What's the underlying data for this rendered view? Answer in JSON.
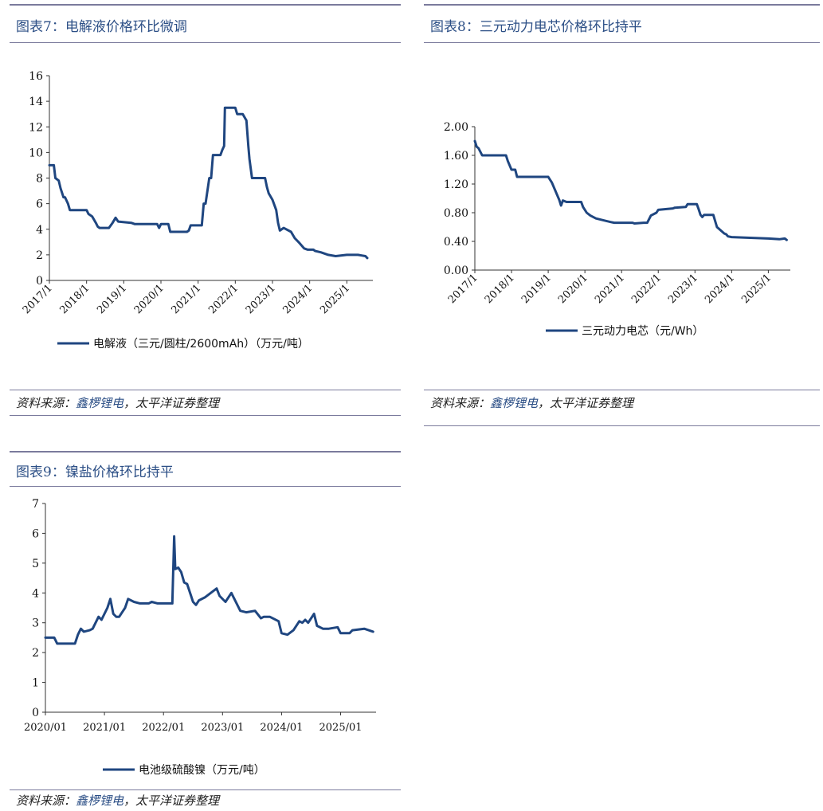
{
  "colors": {
    "title": "#2c4f86",
    "series": "#1f4680",
    "rule": "#7a7a9c"
  },
  "panels": [
    {
      "title": "图表7：电解液价格环比微调",
      "source_prefix": "资料来源：",
      "source_link": "鑫椤锂电",
      "source_suffix": "，太平洋证券整理"
    },
    {
      "title": "图表8：三元动力电芯价格环比持平",
      "source_prefix": "资料来源：",
      "source_link": "鑫椤锂电",
      "source_suffix": "，太平洋证券整理"
    },
    {
      "title": "图表9：镍盐价格环比持平",
      "source_prefix": "资料来源：",
      "source_link": "鑫椤锂电",
      "source_suffix": "，太平洋证券整理"
    }
  ],
  "chart_data": [
    {
      "type": "line",
      "title": "图表7：电解液价格环比微调",
      "xlabel": "",
      "ylabel": "",
      "x_range": [
        2017.0,
        2025.7
      ],
      "ylim": [
        0,
        16
      ],
      "yticks": [
        0,
        2,
        4,
        6,
        8,
        10,
        12,
        14,
        16
      ],
      "ytick_labels": [
        "0",
        "2",
        "4",
        "6",
        "8",
        "10",
        "12",
        "14",
        "16"
      ],
      "xticks": [
        2017,
        2018,
        2019,
        2020,
        2021,
        2022,
        2023,
        2024,
        2025
      ],
      "xtick_labels": [
        "2017/1",
        "2018/1",
        "2019/1",
        "2020/1",
        "2021/1",
        "2022/1",
        "2023/1",
        "2024/1",
        "2025/1"
      ],
      "xtick_rotate": true,
      "grid": false,
      "legend": "bottom",
      "series": [
        {
          "name": "电解液（三元/圆柱/2600mAh）（万元/吨）",
          "x": [
            2017.0,
            2017.12,
            2017.16,
            2017.25,
            2017.3,
            2017.38,
            2017.42,
            2017.5,
            2017.55,
            2017.6,
            2018.0,
            2018.05,
            2018.15,
            2018.25,
            2018.3,
            2018.35,
            2018.6,
            2018.7,
            2018.78,
            2018.85,
            2019.2,
            2019.3,
            2019.9,
            2019.95,
            2020.0,
            2020.2,
            2020.25,
            2020.7,
            2020.75,
            2020.8,
            2021.1,
            2021.15,
            2021.2,
            2021.3,
            2021.35,
            2021.4,
            2021.6,
            2021.65,
            2021.7,
            2021.72,
            2022.0,
            2022.05,
            2022.2,
            2022.3,
            2022.35,
            2022.38,
            2022.45,
            2022.8,
            2022.85,
            2022.9,
            2023.0,
            2023.1,
            2023.15,
            2023.2,
            2023.3,
            2023.5,
            2023.6,
            2023.7,
            2023.85,
            2023.95,
            2024.1,
            2024.15,
            2024.3,
            2024.5,
            2024.7,
            2025.0,
            2025.3,
            2025.4,
            2025.5,
            2025.55
          ],
          "y": [
            9.0,
            9.0,
            8.0,
            7.8,
            7.2,
            6.5,
            6.5,
            6.0,
            5.5,
            5.5,
            5.5,
            5.2,
            5.0,
            4.5,
            4.2,
            4.1,
            4.1,
            4.5,
            4.9,
            4.6,
            4.5,
            4.4,
            4.4,
            4.1,
            4.4,
            4.4,
            3.8,
            3.8,
            3.9,
            4.3,
            4.3,
            6.0,
            6.0,
            8.0,
            8.0,
            9.8,
            9.8,
            10.2,
            10.5,
            13.5,
            13.5,
            13.0,
            13.0,
            12.5,
            10.5,
            9.5,
            8.0,
            8.0,
            7.3,
            6.8,
            6.3,
            5.5,
            4.5,
            3.9,
            4.1,
            3.8,
            3.3,
            3.0,
            2.5,
            2.4,
            2.4,
            2.3,
            2.2,
            2.0,
            1.9,
            2.0,
            2.0,
            1.95,
            1.9,
            1.75
          ]
        }
      ]
    },
    {
      "type": "line",
      "title": "图表8：三元动力电芯价格环比持平",
      "xlabel": "",
      "ylabel": "",
      "x_range": [
        2017.0,
        2025.6
      ],
      "ylim": [
        0,
        2.0
      ],
      "yticks": [
        0,
        0.4,
        0.8,
        1.2,
        1.6,
        2.0
      ],
      "ytick_labels": [
        "0.00",
        "0.40",
        "0.80",
        "1.20",
        "1.60",
        "2.00"
      ],
      "xticks": [
        2017,
        2018,
        2019,
        2020,
        2021,
        2022,
        2023,
        2024,
        2025
      ],
      "xtick_labels": [
        "2017/1",
        "2018/1",
        "2019/1",
        "2020/1",
        "2021/1",
        "2022/1",
        "2023/1",
        "2024/1",
        "2025/1"
      ],
      "xtick_rotate": true,
      "grid": false,
      "legend": "bottom",
      "series": [
        {
          "name": "三元动力电芯（元/Wh）",
          "x": [
            2017.0,
            2017.05,
            2017.1,
            2017.2,
            2017.85,
            2017.9,
            2018.0,
            2018.1,
            2018.15,
            2019.0,
            2019.1,
            2019.2,
            2019.3,
            2019.35,
            2019.4,
            2019.5,
            2019.9,
            2019.95,
            2020.05,
            2020.15,
            2020.3,
            2020.7,
            2020.8,
            2021.3,
            2021.35,
            2021.6,
            2021.7,
            2021.8,
            2021.95,
            2022.0,
            2022.4,
            2022.45,
            2022.75,
            2022.8,
            2023.05,
            2023.1,
            2023.15,
            2023.2,
            2023.25,
            2023.5,
            2023.6,
            2023.8,
            2023.85,
            2023.9,
            2024.0,
            2024.5,
            2025.0,
            2025.3,
            2025.45,
            2025.5
          ],
          "y": [
            1.8,
            1.72,
            1.7,
            1.6,
            1.6,
            1.52,
            1.4,
            1.4,
            1.3,
            1.3,
            1.22,
            1.1,
            0.98,
            0.9,
            0.97,
            0.95,
            0.95,
            0.88,
            0.8,
            0.76,
            0.72,
            0.67,
            0.66,
            0.66,
            0.65,
            0.66,
            0.66,
            0.76,
            0.8,
            0.84,
            0.86,
            0.87,
            0.88,
            0.92,
            0.92,
            0.85,
            0.77,
            0.74,
            0.77,
            0.77,
            0.6,
            0.51,
            0.5,
            0.47,
            0.46,
            0.45,
            0.44,
            0.43,
            0.44,
            0.42
          ]
        }
      ]
    },
    {
      "type": "line",
      "title": "图表9：镍盐价格环比持平",
      "xlabel": "",
      "ylabel": "",
      "x_range": [
        2020.0,
        2025.6
      ],
      "ylim": [
        0,
        7
      ],
      "yticks": [
        0,
        1,
        2,
        3,
        4,
        5,
        6,
        7
      ],
      "ytick_labels": [
        "0",
        "1",
        "2",
        "3",
        "4",
        "5",
        "6",
        "7"
      ],
      "xticks": [
        2020,
        2021,
        2022,
        2023,
        2024,
        2025
      ],
      "xtick_labels": [
        "2020/01",
        "2021/01",
        "2022/01",
        "2023/01",
        "2024/01",
        "2025/01"
      ],
      "xtick_rotate": false,
      "grid": false,
      "legend": "bottom",
      "series": [
        {
          "name": "电池级硫酸镍（万元/吨）",
          "x": [
            2020.0,
            2020.15,
            2020.2,
            2020.5,
            2020.55,
            2020.6,
            2020.65,
            2020.75,
            2020.8,
            2020.9,
            2020.95,
            2021.0,
            2021.05,
            2021.1,
            2021.15,
            2021.2,
            2021.25,
            2021.3,
            2021.35,
            2021.4,
            2021.5,
            2021.6,
            2021.75,
            2021.8,
            2021.9,
            2021.95,
            2022.0,
            2022.15,
            2022.18,
            2022.2,
            2022.25,
            2022.3,
            2022.35,
            2022.4,
            2022.5,
            2022.55,
            2022.6,
            2022.7,
            2022.8,
            2022.9,
            2022.95,
            2023.05,
            2023.15,
            2023.3,
            2023.4,
            2023.55,
            2023.65,
            2023.7,
            2023.8,
            2023.95,
            2024.0,
            2024.1,
            2024.2,
            2024.3,
            2024.35,
            2024.4,
            2024.45,
            2024.55,
            2024.6,
            2024.7,
            2024.8,
            2024.95,
            2025.0,
            2025.15,
            2025.2,
            2025.4,
            2025.55
          ],
          "y": [
            2.5,
            2.5,
            2.3,
            2.3,
            2.6,
            2.8,
            2.7,
            2.75,
            2.8,
            3.2,
            3.1,
            3.3,
            3.5,
            3.8,
            3.3,
            3.2,
            3.2,
            3.35,
            3.5,
            3.8,
            3.7,
            3.65,
            3.65,
            3.7,
            3.65,
            3.65,
            3.65,
            3.65,
            5.9,
            4.8,
            4.85,
            4.7,
            4.35,
            4.3,
            3.7,
            3.6,
            3.75,
            3.85,
            4.0,
            4.15,
            3.9,
            3.7,
            4.0,
            3.4,
            3.35,
            3.4,
            3.15,
            3.2,
            3.2,
            3.05,
            2.65,
            2.6,
            2.75,
            3.05,
            3.0,
            3.1,
            3.0,
            3.3,
            2.9,
            2.8,
            2.8,
            2.85,
            2.65,
            2.65,
            2.75,
            2.8,
            2.7
          ]
        }
      ]
    }
  ]
}
